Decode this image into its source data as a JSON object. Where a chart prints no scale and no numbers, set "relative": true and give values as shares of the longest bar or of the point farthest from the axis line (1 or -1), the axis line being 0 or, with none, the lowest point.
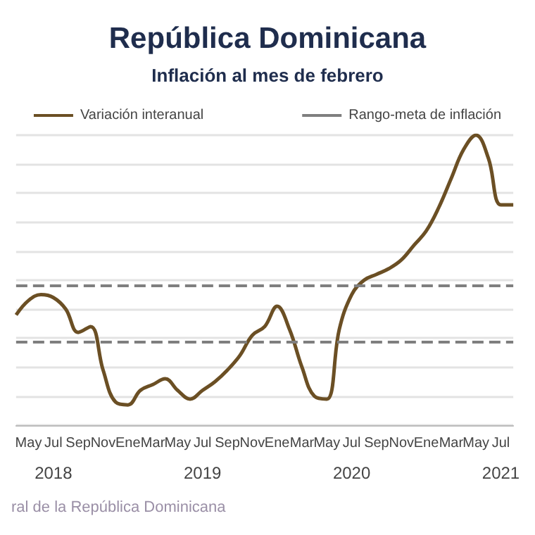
{
  "chart_data": {
    "type": "line",
    "title": "República Dominicana",
    "subtitle": "Inflación al mes de febrero",
    "relative": true,
    "categories": [
      null,
      "May",
      null,
      "Jul",
      null,
      "Sep",
      null,
      "Nov",
      null,
      "Ene",
      null,
      "Mar",
      null,
      "May",
      null,
      "Jul",
      null,
      "Sep",
      null,
      "Nov",
      null,
      "Ene",
      null,
      "Mar",
      null,
      "May",
      null,
      "Jul",
      null,
      "Sep",
      null,
      "Nov",
      null,
      "Ene",
      null,
      "Mar",
      null,
      "May",
      null,
      "Jul",
      null
    ],
    "series": [
      {
        "name": "Variación interanual",
        "color": "#6b4f24",
        "values": [
          0.38,
          0.43,
          0.45,
          0.44,
          0.4,
          0.32,
          0.34,
          0.19,
          0.08,
          0.07,
          0.12,
          0.14,
          0.16,
          0.12,
          0.09,
          0.12,
          0.15,
          0.19,
          0.24,
          0.31,
          0.34,
          0.41,
          0.33,
          0.2,
          0.1,
          0.09,
          0.33,
          0.45,
          0.5,
          0.52,
          0.54,
          0.57,
          0.62,
          0.67,
          0.75,
          0.85,
          0.95,
          1,
          0.92,
          0.76,
          0.76
        ]
      }
    ],
    "ref_lines": [
      {
        "axis": "y",
        "value": 0.29,
        "label": "Rango-meta de inflación",
        "color": "#7f7f7f",
        "line_style": "dashed"
      },
      {
        "axis": "y",
        "value": 0.48,
        "color": "#7f7f7f",
        "line_style": "dashed"
      }
    ],
    "annotations": [
      "2018",
      "2019",
      "2020",
      "2021",
      "ral de la República Dominicana"
    ],
    "grid": "y",
    "legend": "top",
    "marker": "none",
    "line_style": "solid"
  }
}
